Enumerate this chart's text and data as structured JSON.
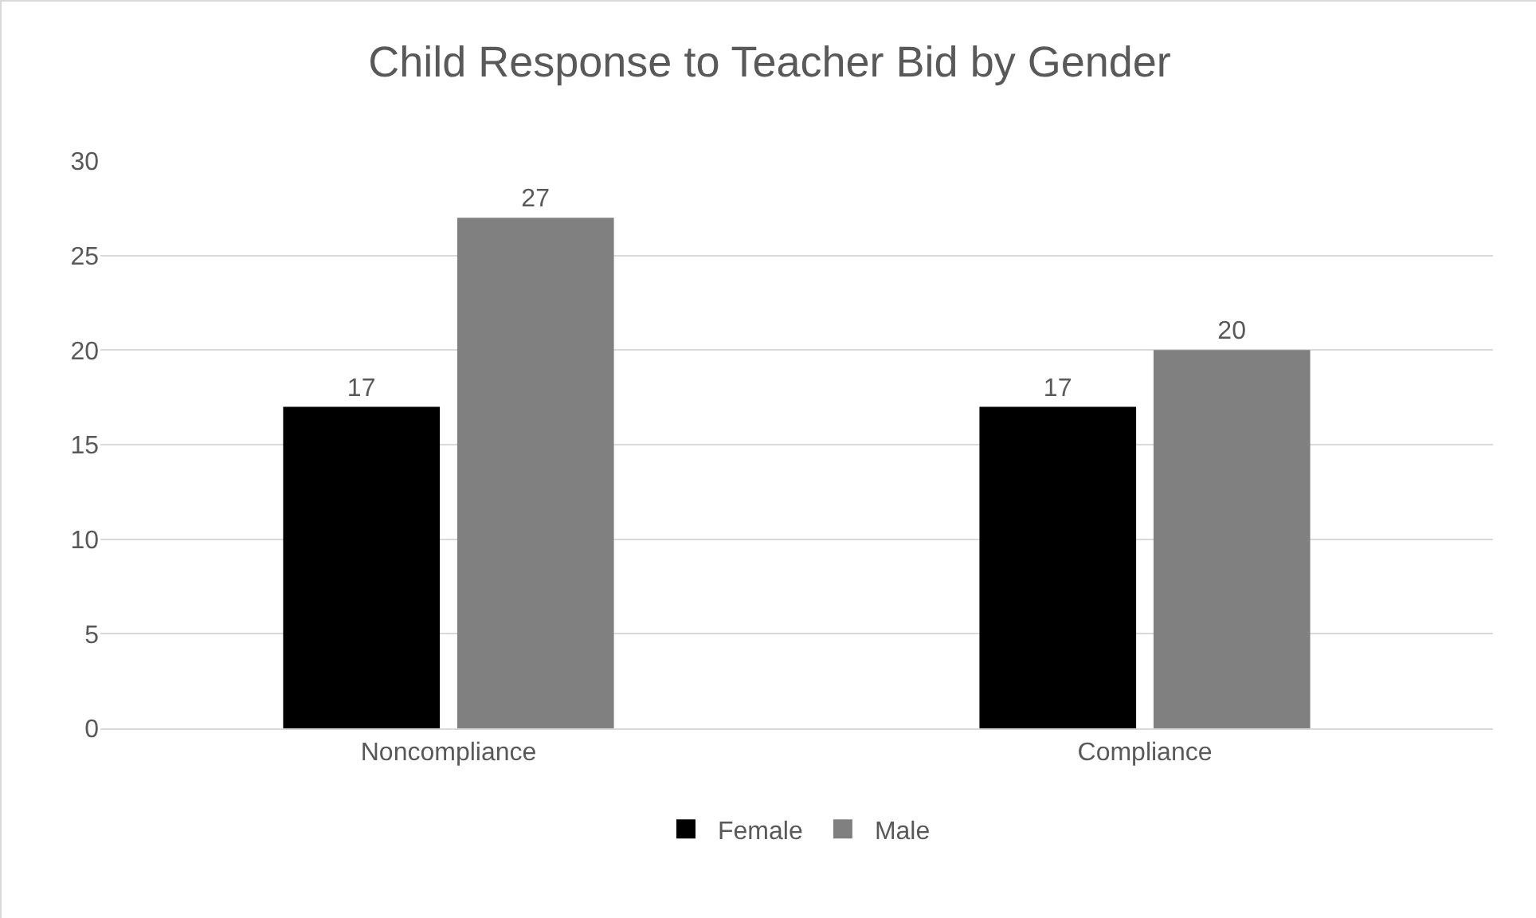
{
  "chart_data": {
    "type": "bar",
    "title": "Child Response to Teacher Bid by Gender",
    "categories": [
      "Noncompliance",
      "Compliance"
    ],
    "series": [
      {
        "name": "Female",
        "color": "#000000",
        "values": [
          17,
          17
        ]
      },
      {
        "name": "Male",
        "color": "#808080",
        "values": [
          27,
          20
        ]
      }
    ],
    "ylim": [
      0,
      30
    ],
    "yticks": [
      0,
      5,
      10,
      15,
      20,
      25,
      30
    ],
    "grid": "y",
    "legend": "bottom",
    "data_labels": true
  }
}
